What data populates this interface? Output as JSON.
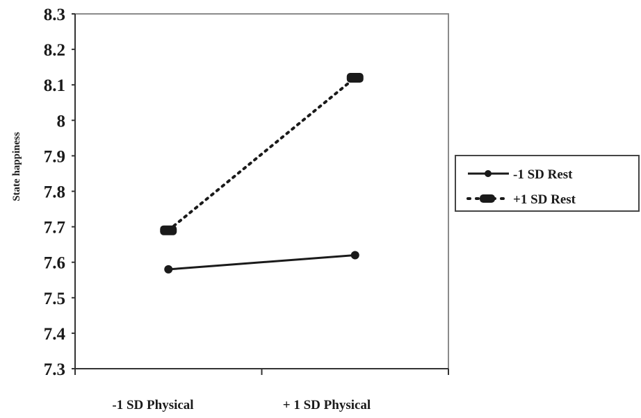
{
  "chart_data": {
    "type": "line",
    "title": "",
    "xlabel": "",
    "ylabel": "State happiness",
    "categories": [
      "-1 SD Physical",
      "+ 1 SD Physical"
    ],
    "ylim": [
      7.3,
      8.3
    ],
    "yticks": [
      "7.3",
      "7.4",
      "7.5",
      "7.6",
      "7.7",
      "7.8",
      "7.9",
      "8",
      "8.1",
      "8.2",
      "8.3"
    ],
    "grid": false,
    "legend_position": "right",
    "series": [
      {
        "name": "-1 SD Rest",
        "values": [
          7.58,
          7.62
        ],
        "style": "solid",
        "marker": "diamond",
        "color": "#1a1a1a"
      },
      {
        "name": "+1 SD Rest",
        "values": [
          7.69,
          8.12
        ],
        "style": "dotted",
        "marker": "square",
        "color": "#1a1a1a"
      }
    ]
  }
}
